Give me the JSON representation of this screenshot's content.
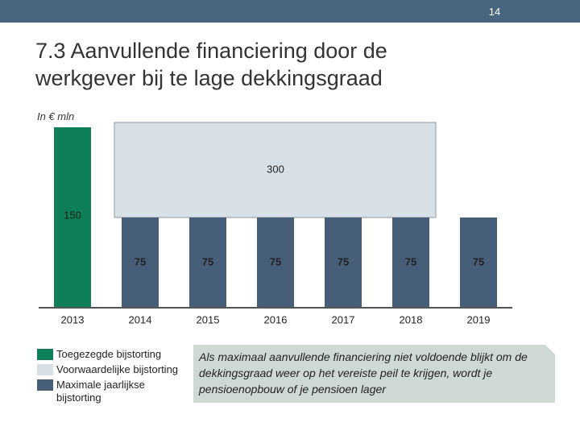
{
  "page": {
    "number": "14"
  },
  "chart_data": {
    "type": "bar",
    "title": "7.3 Aanvullende financiering door de werkgever bij te lage dekkingsgraad",
    "subtitle": "In € mln",
    "categories": [
      "2013",
      "2014",
      "2015",
      "2016",
      "2017",
      "2018",
      "2019"
    ],
    "series": [
      {
        "name": "Toegezegde bijstorting",
        "color": "#0e7f56",
        "values": [
          150,
          null,
          null,
          null,
          null,
          null,
          null
        ]
      },
      {
        "name": "Maximale jaarlijkse bijstorting",
        "color": "#465e78",
        "values": [
          null,
          75,
          75,
          75,
          75,
          75,
          75
        ]
      }
    ],
    "conditional": {
      "name": "Voorwaardelijke bijstorting",
      "color": "#d7e0e7",
      "value": 300,
      "categories": [
        "2014",
        "2018"
      ]
    },
    "annotation": "Als maximaal aanvullende financiering niet voldoende blijkt om de dekkingsgraad weer op het vereiste peil te krijgen, wordt je pensioenopbouw of je pensioen lager"
  }
}
